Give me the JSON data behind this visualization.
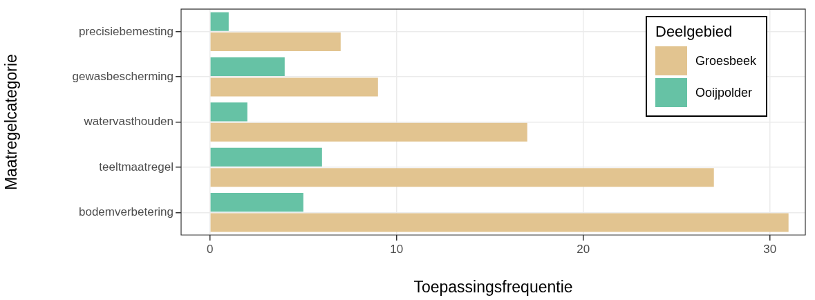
{
  "chart_data": {
    "type": "bar",
    "orientation": "horizontal",
    "xlabel": "Toepassingsfrequentie",
    "ylabel": "Maatregelcategorie",
    "legend_title": "Deelgebied",
    "legend": "top right",
    "grid": true,
    "categories": [
      "precisiebemesting",
      "gewasbescherming",
      "watervasthouden",
      "teeltmaatregel",
      "bodemverbetering"
    ],
    "series": [
      {
        "name": "Groesbeek",
        "color": "#e2c490",
        "values": [
          7,
          9,
          17,
          27,
          31
        ]
      },
      {
        "name": "Ooijpolder",
        "color": "#66c2a5",
        "values": [
          1,
          4,
          2,
          6,
          5
        ]
      }
    ],
    "xlim": [
      -1.55,
      31.9
    ],
    "xticks": [
      0,
      10,
      20,
      30
    ]
  }
}
